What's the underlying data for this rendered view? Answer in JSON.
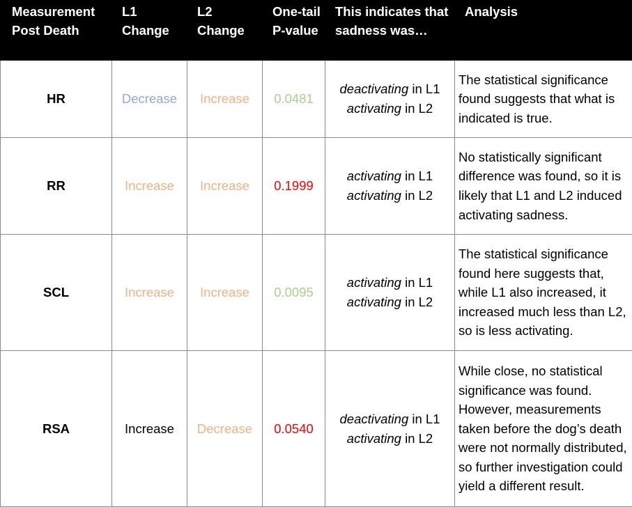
{
  "colors": {
    "increase": "#f4b183",
    "decrease": "#8faadc",
    "neutral": "#000000",
    "significant": "#a9d18e",
    "not_significant": "#ff0000",
    "header_bg": "#000000",
    "header_text": "#ffffff"
  },
  "headers": {
    "measurement": "Measurement Post Death",
    "l1": "L1 Change",
    "l2": "L2 Change",
    "pvalue": "One-tail P-value",
    "indicates": "This indicates that sadness was…",
    "analysis": "Analysis"
  },
  "rows": [
    {
      "measurement": "HR",
      "l1": "Decrease",
      "l2": "Increase",
      "pvalue": "0.0481",
      "ind1_word": "deactivating",
      "ind1_suffix": " in L1",
      "ind2_word": "activating",
      "ind2_suffix": " in L2",
      "analysis": "The statistical significance found suggests that what is indicated is true."
    },
    {
      "measurement": "RR",
      "l1": "Increase",
      "l2": "Increase",
      "pvalue": "0.1999",
      "ind1_word": "activating",
      "ind1_suffix": " in L1",
      "ind2_word": "activating",
      "ind2_suffix": " in L2",
      "analysis": "No statistically significant difference was found, so it is likely that L1 and L2 induced activating sadness."
    },
    {
      "measurement": "SCL",
      "l1": "Increase",
      "l2": "Increase",
      "pvalue": "0.0095",
      "ind1_word": "activating",
      "ind1_suffix": " in L1",
      "ind2_word": "activating",
      "ind2_suffix": " in L2",
      "analysis": "The statistical significance found here suggests that, while L1 also increased, it increased much less than L2, so is less activating."
    },
    {
      "measurement": "RSA",
      "l1": "Increase",
      "l2": "Decrease",
      "pvalue": "0.0540",
      "ind1_word": "deactivating",
      "ind1_suffix": " in L1",
      "ind2_word": "activating",
      "ind2_suffix": " in L2",
      "analysis": "While close, no statistical significance was found. However, measurements taken before the dog’s death were not normally distributed, so further investigation could yield a different result."
    }
  ]
}
